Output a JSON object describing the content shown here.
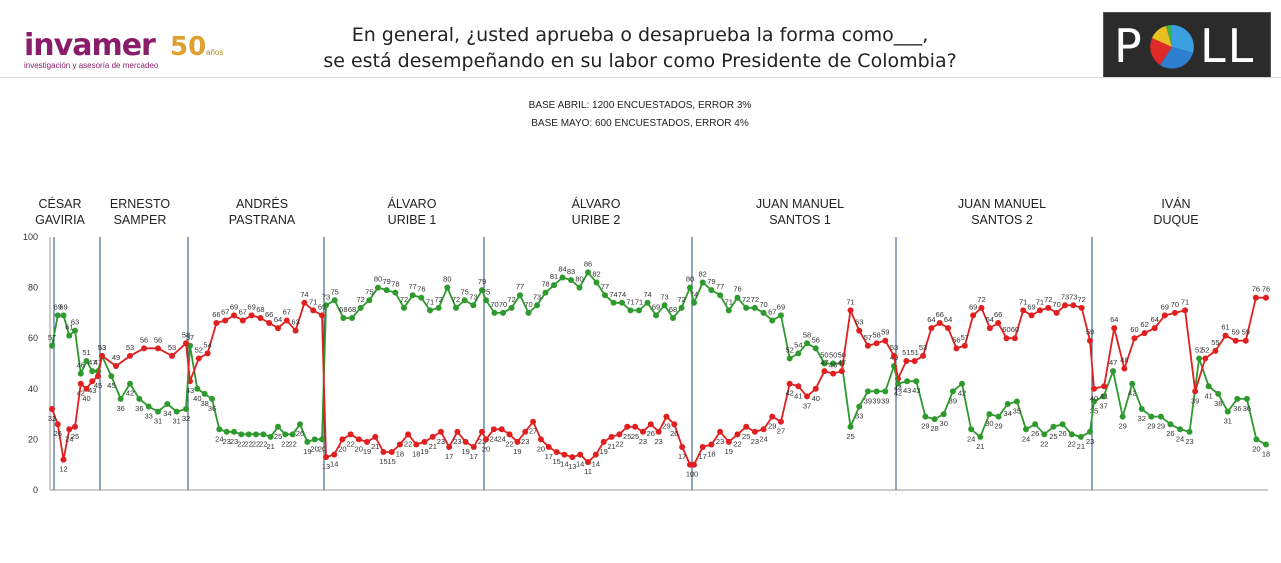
{
  "header": {
    "logo_word": "invamer",
    "logo_50": "50",
    "logo_anos": "años",
    "logo_sub": "investigación y asesoría de mercadeo",
    "title_line1": "En general, ¿usted aprueba o desaprueba la forma como___,",
    "title_line2": "se está desempeñando en su labor como Presidente de Colombia?",
    "base_abril": "BASE ABRIL: 1200 ENCUESTADOS, ERROR 3%",
    "base_mayo": "BASE MAYO: 600 ENCUESTADOS, ERROR 4%",
    "poll_logo": "POLL"
  },
  "colors": {
    "approve": "#2e9a2e",
    "disapprove": "#e02020",
    "divider": "#1f4e79",
    "logo_purple": "#8a1d6b",
    "logo_gold": "#e0a030"
  },
  "chart_data": {
    "type": "line",
    "ylim": [
      0,
      100
    ],
    "yticks": [
      0,
      20,
      40,
      60,
      80,
      100
    ],
    "grid": false,
    "presidents": [
      {
        "line1": "CÉSAR",
        "line2": "GAVIRIA"
      },
      {
        "line1": "ERNESTO",
        "line2": "SAMPER"
      },
      {
        "line1": "ANDRÉS",
        "line2": "PASTRANA"
      },
      {
        "line1": "ÁLVARO",
        "line2": "URIBE 1"
      },
      {
        "line1": "ÁLVARO",
        "line2": "URIBE 2"
      },
      {
        "line1": "JUAN MANUEL",
        "line2": "SANTOS 1"
      },
      {
        "line1": "JUAN MANUEL",
        "line2": "SANTOS 2"
      },
      {
        "line1": "IVÁN",
        "line2": "DUQUE"
      }
    ],
    "series": [
      {
        "color": "green",
        "segments": [
          [
            57,
            69,
            69,
            61,
            63,
            46,
            51,
            47,
            47
          ],
          [
            53,
            45,
            36,
            42,
            36,
            33,
            31,
            34,
            31,
            32
          ],
          [
            57,
            40,
            38,
            36,
            24,
            23,
            23,
            22,
            22,
            22,
            22,
            21,
            25,
            22,
            22,
            26,
            19,
            20,
            20
          ],
          [
            73,
            75,
            68,
            68,
            72,
            75,
            80,
            79,
            78,
            72,
            77,
            76,
            71,
            72,
            80,
            72,
            75,
            73,
            79
          ],
          [
            75,
            70,
            70,
            72,
            77,
            70,
            73,
            78,
            81,
            84,
            83,
            80,
            86,
            82,
            77,
            74,
            74,
            71,
            71,
            74,
            69,
            73,
            68,
            72,
            80
          ],
          [
            74,
            82,
            79,
            77,
            71,
            76,
            72,
            72,
            70,
            67,
            69,
            52,
            54,
            58,
            56,
            50,
            50,
            50,
            25,
            33,
            39,
            39,
            39,
            49
          ],
          [
            42,
            43,
            43,
            29,
            28,
            30,
            39,
            42,
            24,
            21,
            30,
            29,
            34,
            35,
            24,
            26,
            22,
            25,
            26,
            22,
            21,
            23
          ],
          [
            35,
            37,
            47,
            29,
            42,
            32,
            29,
            29,
            26,
            24,
            23,
            52,
            41,
            38,
            31,
            36,
            36,
            20,
            18
          ]
        ]
      },
      {
        "color": "red",
        "segments": [
          [
            32,
            26,
            12,
            24,
            25,
            42,
            40,
            43,
            45
          ],
          [
            53,
            49,
            53,
            56,
            56,
            53,
            58
          ],
          [
            43,
            52,
            54,
            66,
            67,
            69,
            67,
            69,
            68,
            66,
            64,
            67,
            63,
            74,
            71,
            69
          ],
          [
            13,
            14,
            20,
            22,
            20,
            19,
            21,
            15,
            15,
            18,
            22,
            18,
            19,
            21,
            23,
            17,
            23,
            19,
            17,
            23
          ],
          [
            20,
            24,
            24,
            22,
            19,
            23,
            27,
            20,
            17,
            15,
            14,
            13,
            14,
            11,
            14,
            19,
            21,
            22,
            25,
            25,
            23,
            26,
            23,
            29,
            26,
            17,
            10
          ],
          [
            10,
            17,
            18,
            23,
            19,
            22,
            25,
            23,
            24,
            29,
            27,
            42,
            41,
            37,
            40,
            47,
            46,
            47,
            71,
            63,
            57,
            58,
            59,
            53
          ],
          [
            44,
            51,
            51,
            53,
            64,
            66,
            64,
            56,
            57,
            69,
            72,
            64,
            66,
            60,
            60,
            71,
            69,
            71,
            72,
            70,
            73,
            73,
            72,
            59
          ],
          [
            40,
            41,
            64,
            48,
            60,
            62,
            64,
            69,
            70,
            71,
            39,
            52,
            55,
            61,
            59,
            59,
            76,
            76
          ]
        ]
      }
    ]
  }
}
